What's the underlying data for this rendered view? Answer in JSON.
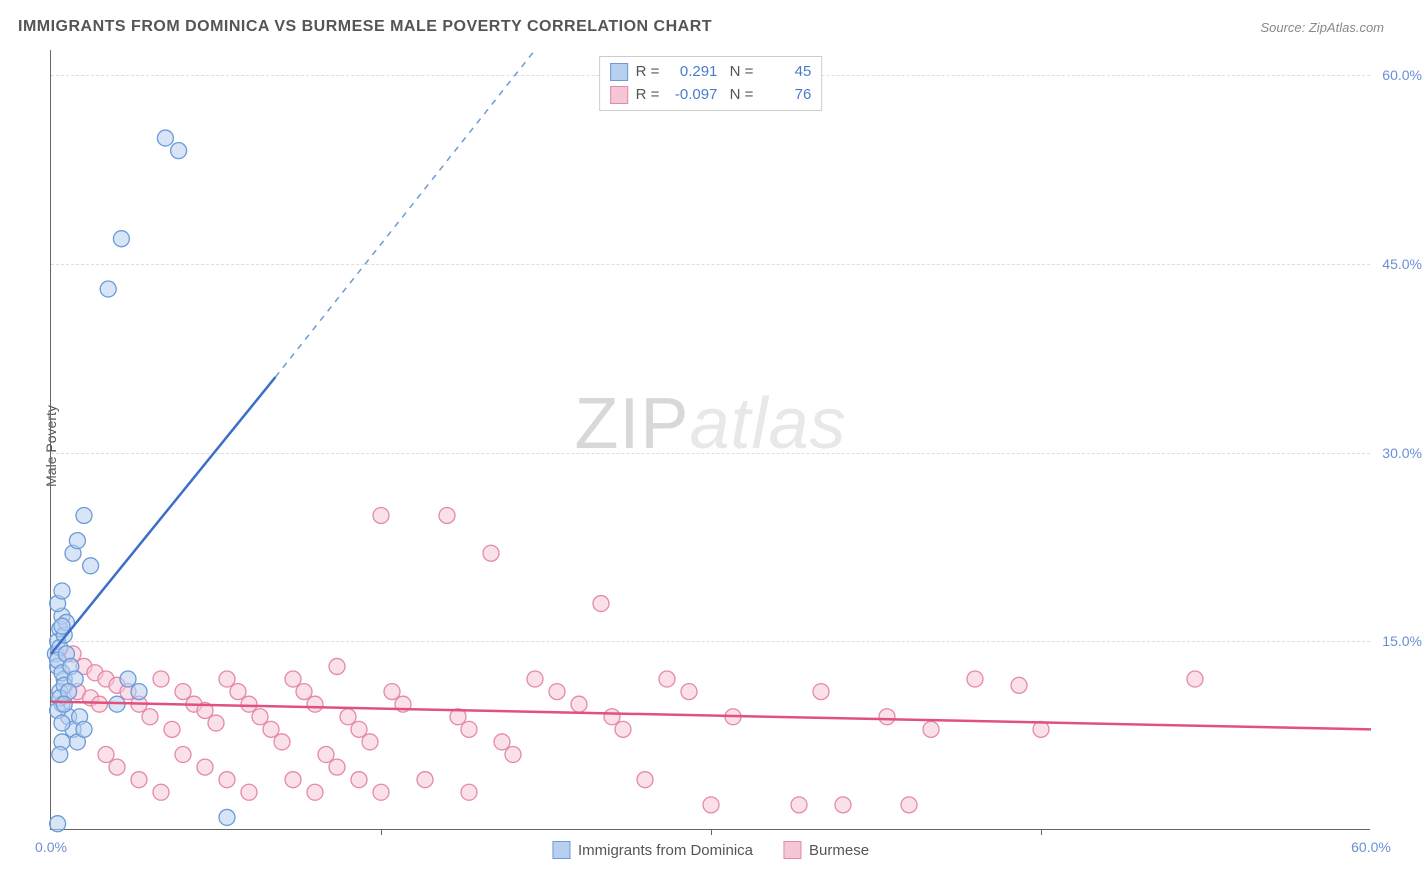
{
  "title": "IMMIGRANTS FROM DOMINICA VS BURMESE MALE POVERTY CORRELATION CHART",
  "source": "Source: ZipAtlas.com",
  "ylabel": "Male Poverty",
  "watermark": {
    "zip": "ZIP",
    "atlas": "atlas"
  },
  "chart": {
    "type": "scatter",
    "xlim": [
      0,
      60
    ],
    "ylim": [
      0,
      62
    ],
    "xtick_step": 15,
    "ytick_step": 15,
    "ytick_labels": [
      "15.0%",
      "30.0%",
      "45.0%",
      "60.0%"
    ],
    "xtick_labels_start": "0.0%",
    "xtick_labels_end": "60.0%",
    "grid_color": "#dddddd",
    "axis_color": "#666666",
    "background_color": "#ffffff",
    "series": [
      {
        "name": "Immigrants from Dominica",
        "color_fill": "#b8d0f0",
        "color_stroke": "#6b9bd8",
        "marker_radius": 8,
        "R": "0.291",
        "N": "45",
        "trend": {
          "x1": 0,
          "y1": 14,
          "x2": 10.2,
          "y2": 36,
          "dash_x2": 22,
          "dash_y2": 62
        },
        "points": [
          [
            0.2,
            14
          ],
          [
            0.3,
            15
          ],
          [
            0.4,
            16
          ],
          [
            0.5,
            17
          ],
          [
            0.3,
            13
          ],
          [
            0.6,
            12
          ],
          [
            0.4,
            11
          ],
          [
            0.5,
            10
          ],
          [
            0.8,
            9
          ],
          [
            1.0,
            8
          ],
          [
            1.2,
            7
          ],
          [
            0.3,
            18
          ],
          [
            0.5,
            19
          ],
          [
            0.4,
            14.5
          ],
          [
            0.6,
            15.5
          ],
          [
            0.7,
            16.5
          ],
          [
            0.3,
            13.5
          ],
          [
            0.5,
            12.5
          ],
          [
            0.6,
            11.5
          ],
          [
            0.4,
            10.5
          ],
          [
            0.3,
            9.5
          ],
          [
            0.5,
            8.5
          ],
          [
            1.5,
            25
          ],
          [
            1.0,
            22
          ],
          [
            1.2,
            23
          ],
          [
            1.8,
            21
          ],
          [
            2.6,
            43
          ],
          [
            3.2,
            47
          ],
          [
            5.2,
            55
          ],
          [
            5.8,
            54
          ],
          [
            0.7,
            14
          ],
          [
            0.9,
            13
          ],
          [
            1.1,
            12
          ],
          [
            0.8,
            11
          ],
          [
            0.6,
            10
          ],
          [
            1.3,
            9
          ],
          [
            1.5,
            8
          ],
          [
            3.5,
            12
          ],
          [
            4.0,
            11
          ],
          [
            3.0,
            10
          ],
          [
            0.5,
            7
          ],
          [
            0.4,
            6
          ],
          [
            8.0,
            1
          ],
          [
            0.3,
            0.5
          ],
          [
            0.5,
            16.2
          ]
        ]
      },
      {
        "name": "Burmese",
        "color_fill": "#f5c6d6",
        "color_stroke": "#e589a8",
        "marker_radius": 8,
        "R": "-0.097",
        "N": "76",
        "trend": {
          "x1": 0,
          "y1": 10.2,
          "x2": 60,
          "y2": 8.0
        },
        "points": [
          [
            1,
            14
          ],
          [
            1.5,
            13
          ],
          [
            2,
            12.5
          ],
          [
            2.5,
            12
          ],
          [
            1.2,
            11
          ],
          [
            1.8,
            10.5
          ],
          [
            2.2,
            10
          ],
          [
            3,
            11.5
          ],
          [
            3.5,
            11
          ],
          [
            4,
            10
          ],
          [
            4.5,
            9
          ],
          [
            5,
            12
          ],
          [
            5.5,
            8
          ],
          [
            6,
            11
          ],
          [
            6.5,
            10
          ],
          [
            7,
            9.5
          ],
          [
            7.5,
            8.5
          ],
          [
            8,
            12
          ],
          [
            8.5,
            11
          ],
          [
            9,
            10
          ],
          [
            9.5,
            9
          ],
          [
            10,
            8
          ],
          [
            10.5,
            7
          ],
          [
            11,
            12
          ],
          [
            11.5,
            11
          ],
          [
            12,
            10
          ],
          [
            12.5,
            6
          ],
          [
            13,
            5
          ],
          [
            13.5,
            9
          ],
          [
            14,
            8
          ],
          [
            14.5,
            7
          ],
          [
            15,
            25
          ],
          [
            15.5,
            11
          ],
          [
            16,
            10
          ],
          [
            18,
            25
          ],
          [
            18.5,
            9
          ],
          [
            19,
            8
          ],
          [
            20,
            22
          ],
          [
            20.5,
            7
          ],
          [
            21,
            6
          ],
          [
            22,
            12
          ],
          [
            23,
            11
          ],
          [
            24,
            10
          ],
          [
            25,
            18
          ],
          [
            25.5,
            9
          ],
          [
            26,
            8
          ],
          [
            27,
            4
          ],
          [
            28,
            12
          ],
          [
            29,
            11
          ],
          [
            30,
            2
          ],
          [
            31,
            9
          ],
          [
            34,
            2
          ],
          [
            35,
            11
          ],
          [
            36,
            2
          ],
          [
            38,
            9
          ],
          [
            39,
            2
          ],
          [
            40,
            8
          ],
          [
            42,
            12
          ],
          [
            44,
            11.5
          ],
          [
            45,
            8
          ],
          [
            52,
            12
          ],
          [
            2.5,
            6
          ],
          [
            3,
            5
          ],
          [
            4,
            4
          ],
          [
            5,
            3
          ],
          [
            6,
            6
          ],
          [
            7,
            5
          ],
          [
            8,
            4
          ],
          [
            9,
            3
          ],
          [
            11,
            4
          ],
          [
            12,
            3
          ],
          [
            14,
            4
          ],
          [
            15,
            3
          ],
          [
            17,
            4
          ],
          [
            19,
            3
          ],
          [
            13,
            13
          ]
        ]
      }
    ]
  }
}
